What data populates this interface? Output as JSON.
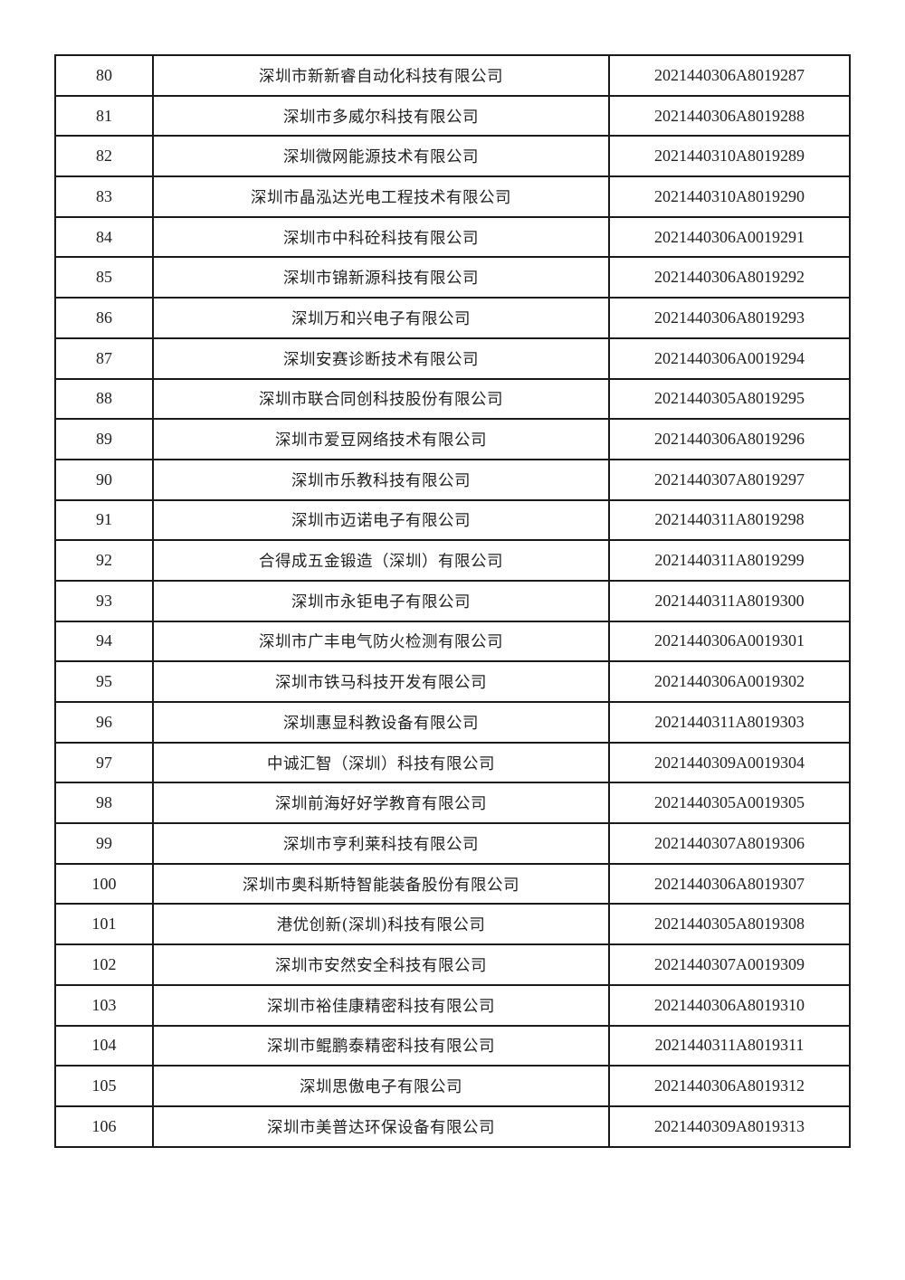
{
  "table": {
    "rows": [
      {
        "no": "80",
        "name": "深圳市新新睿自动化科技有限公司",
        "code": "2021440306A8019287"
      },
      {
        "no": "81",
        "name": "深圳市多威尔科技有限公司",
        "code": "2021440306A8019288"
      },
      {
        "no": "82",
        "name": "深圳微网能源技术有限公司",
        "code": "2021440310A8019289"
      },
      {
        "no": "83",
        "name": "深圳市晶泓达光电工程技术有限公司",
        "code": "2021440310A8019290"
      },
      {
        "no": "84",
        "name": "深圳市中科砼科技有限公司",
        "code": "2021440306A0019291"
      },
      {
        "no": "85",
        "name": "深圳市锦新源科技有限公司",
        "code": "2021440306A8019292"
      },
      {
        "no": "86",
        "name": "深圳万和兴电子有限公司",
        "code": "2021440306A8019293"
      },
      {
        "no": "87",
        "name": "深圳安赛诊断技术有限公司",
        "code": "2021440306A0019294"
      },
      {
        "no": "88",
        "name": "深圳市联合同创科技股份有限公司",
        "code": "2021440305A8019295"
      },
      {
        "no": "89",
        "name": "深圳市爱豆网络技术有限公司",
        "code": "2021440306A8019296"
      },
      {
        "no": "90",
        "name": "深圳市乐教科技有限公司",
        "code": "2021440307A8019297"
      },
      {
        "no": "91",
        "name": "深圳市迈诺电子有限公司",
        "code": "2021440311A8019298"
      },
      {
        "no": "92",
        "name": "合得成五金锻造（深圳）有限公司",
        "code": "2021440311A8019299"
      },
      {
        "no": "93",
        "name": "深圳市永钜电子有限公司",
        "code": "2021440311A8019300"
      },
      {
        "no": "94",
        "name": "深圳市广丰电气防火检测有限公司",
        "code": "2021440306A0019301"
      },
      {
        "no": "95",
        "name": "深圳市铁马科技开发有限公司",
        "code": "2021440306A0019302"
      },
      {
        "no": "96",
        "name": "深圳惠显科教设备有限公司",
        "code": "2021440311A8019303"
      },
      {
        "no": "97",
        "name": "中诚汇智（深圳）科技有限公司",
        "code": "2021440309A0019304"
      },
      {
        "no": "98",
        "name": "深圳前海好好学教育有限公司",
        "code": "2021440305A0019305"
      },
      {
        "no": "99",
        "name": "深圳市亨利莱科技有限公司",
        "code": "2021440307A8019306"
      },
      {
        "no": "100",
        "name": "深圳市奥科斯特智能装备股份有限公司",
        "code": "2021440306A8019307"
      },
      {
        "no": "101",
        "name": "港优创新(深圳)科技有限公司",
        "code": "2021440305A8019308"
      },
      {
        "no": "102",
        "name": "深圳市安然安全科技有限公司",
        "code": "2021440307A0019309"
      },
      {
        "no": "103",
        "name": "深圳市裕佳康精密科技有限公司",
        "code": "2021440306A8019310"
      },
      {
        "no": "104",
        "name": "深圳市鲲鹏泰精密科技有限公司",
        "code": "2021440311A8019311"
      },
      {
        "no": "105",
        "name": "深圳思傲电子有限公司",
        "code": "2021440306A8019312"
      },
      {
        "no": "106",
        "name": "深圳市美普达环保设备有限公司",
        "code": "2021440309A8019313"
      }
    ]
  }
}
